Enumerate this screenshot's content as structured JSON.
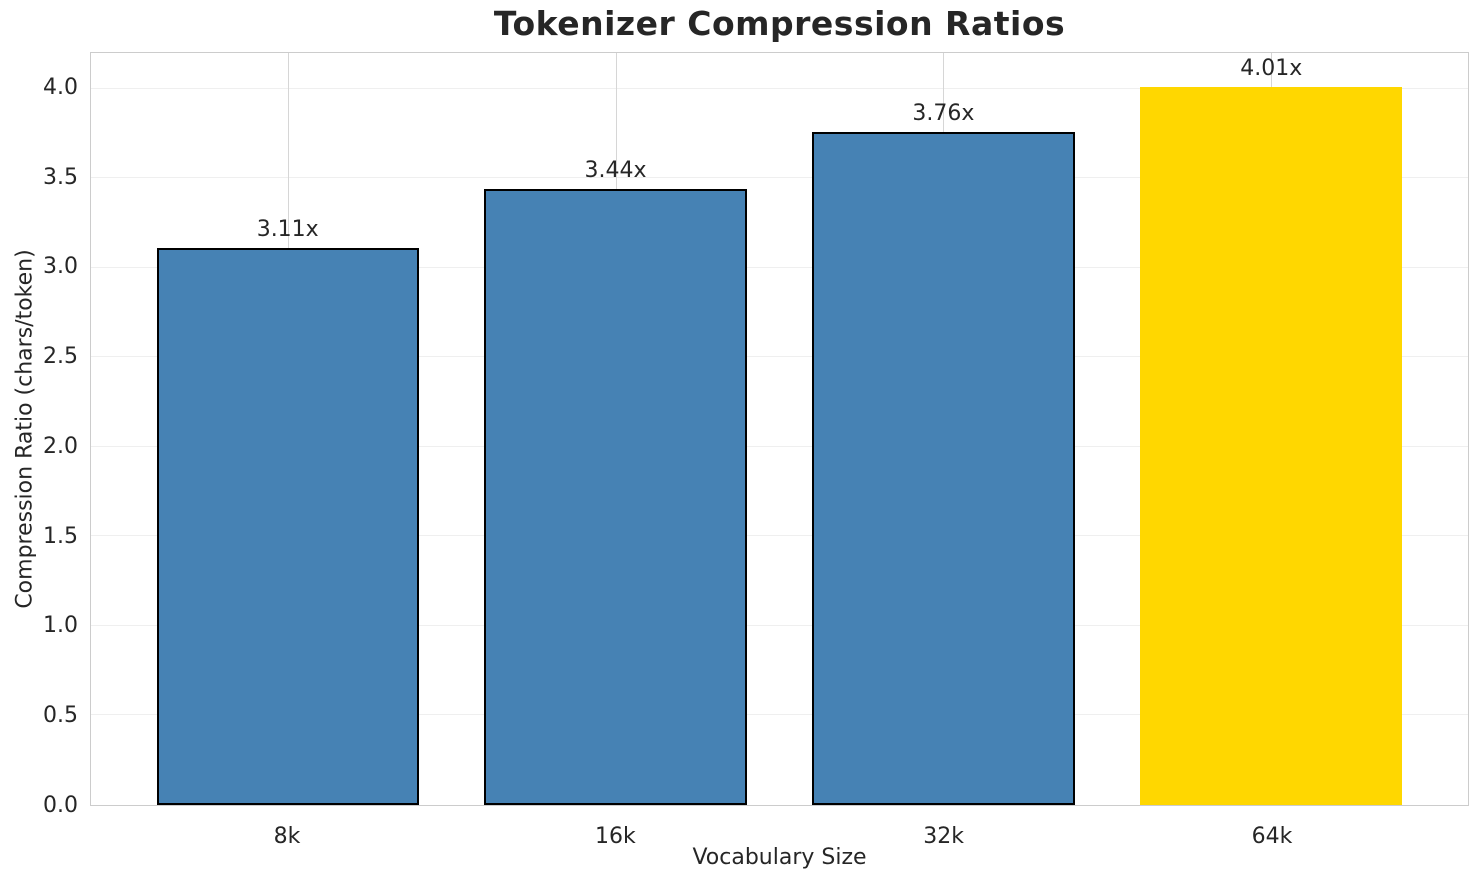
{
  "chart_data": {
    "type": "bar",
    "title": "Tokenizer Compression Ratios",
    "xlabel": "Vocabulary Size",
    "ylabel": "Compression Ratio (chars/token)",
    "categories": [
      "8k",
      "16k",
      "32k",
      "64k"
    ],
    "values": [
      3.11,
      3.44,
      3.76,
      4.01
    ],
    "bar_labels": [
      "3.11x",
      "3.44x",
      "3.76x",
      "4.01x"
    ],
    "bar_colors": [
      "#4682b4",
      "#4682b4",
      "#4682b4",
      "#ffd700"
    ],
    "bar_edge_colors": [
      "#000000",
      "#000000",
      "#000000",
      "#ffd700"
    ],
    "highlight_category": "64k",
    "xlim": [
      -0.6,
      3.6
    ],
    "ylim": [
      0,
      4.2
    ],
    "bar_width": 0.8,
    "ytick_values": [
      0.0,
      0.5,
      1.0,
      1.5,
      2.0,
      2.5,
      3.0,
      3.5,
      4.0
    ],
    "ytick_labels": [
      "0.0",
      "0.5",
      "1.0",
      "1.5",
      "2.0",
      "2.5",
      "3.0",
      "3.5",
      "4.0"
    ],
    "grid": "both",
    "legend": "none",
    "colors": {
      "h_gridline": "#efefef",
      "v_gridline": "#d6d6d6",
      "spine": "#cccccc",
      "text": "#262626"
    }
  }
}
